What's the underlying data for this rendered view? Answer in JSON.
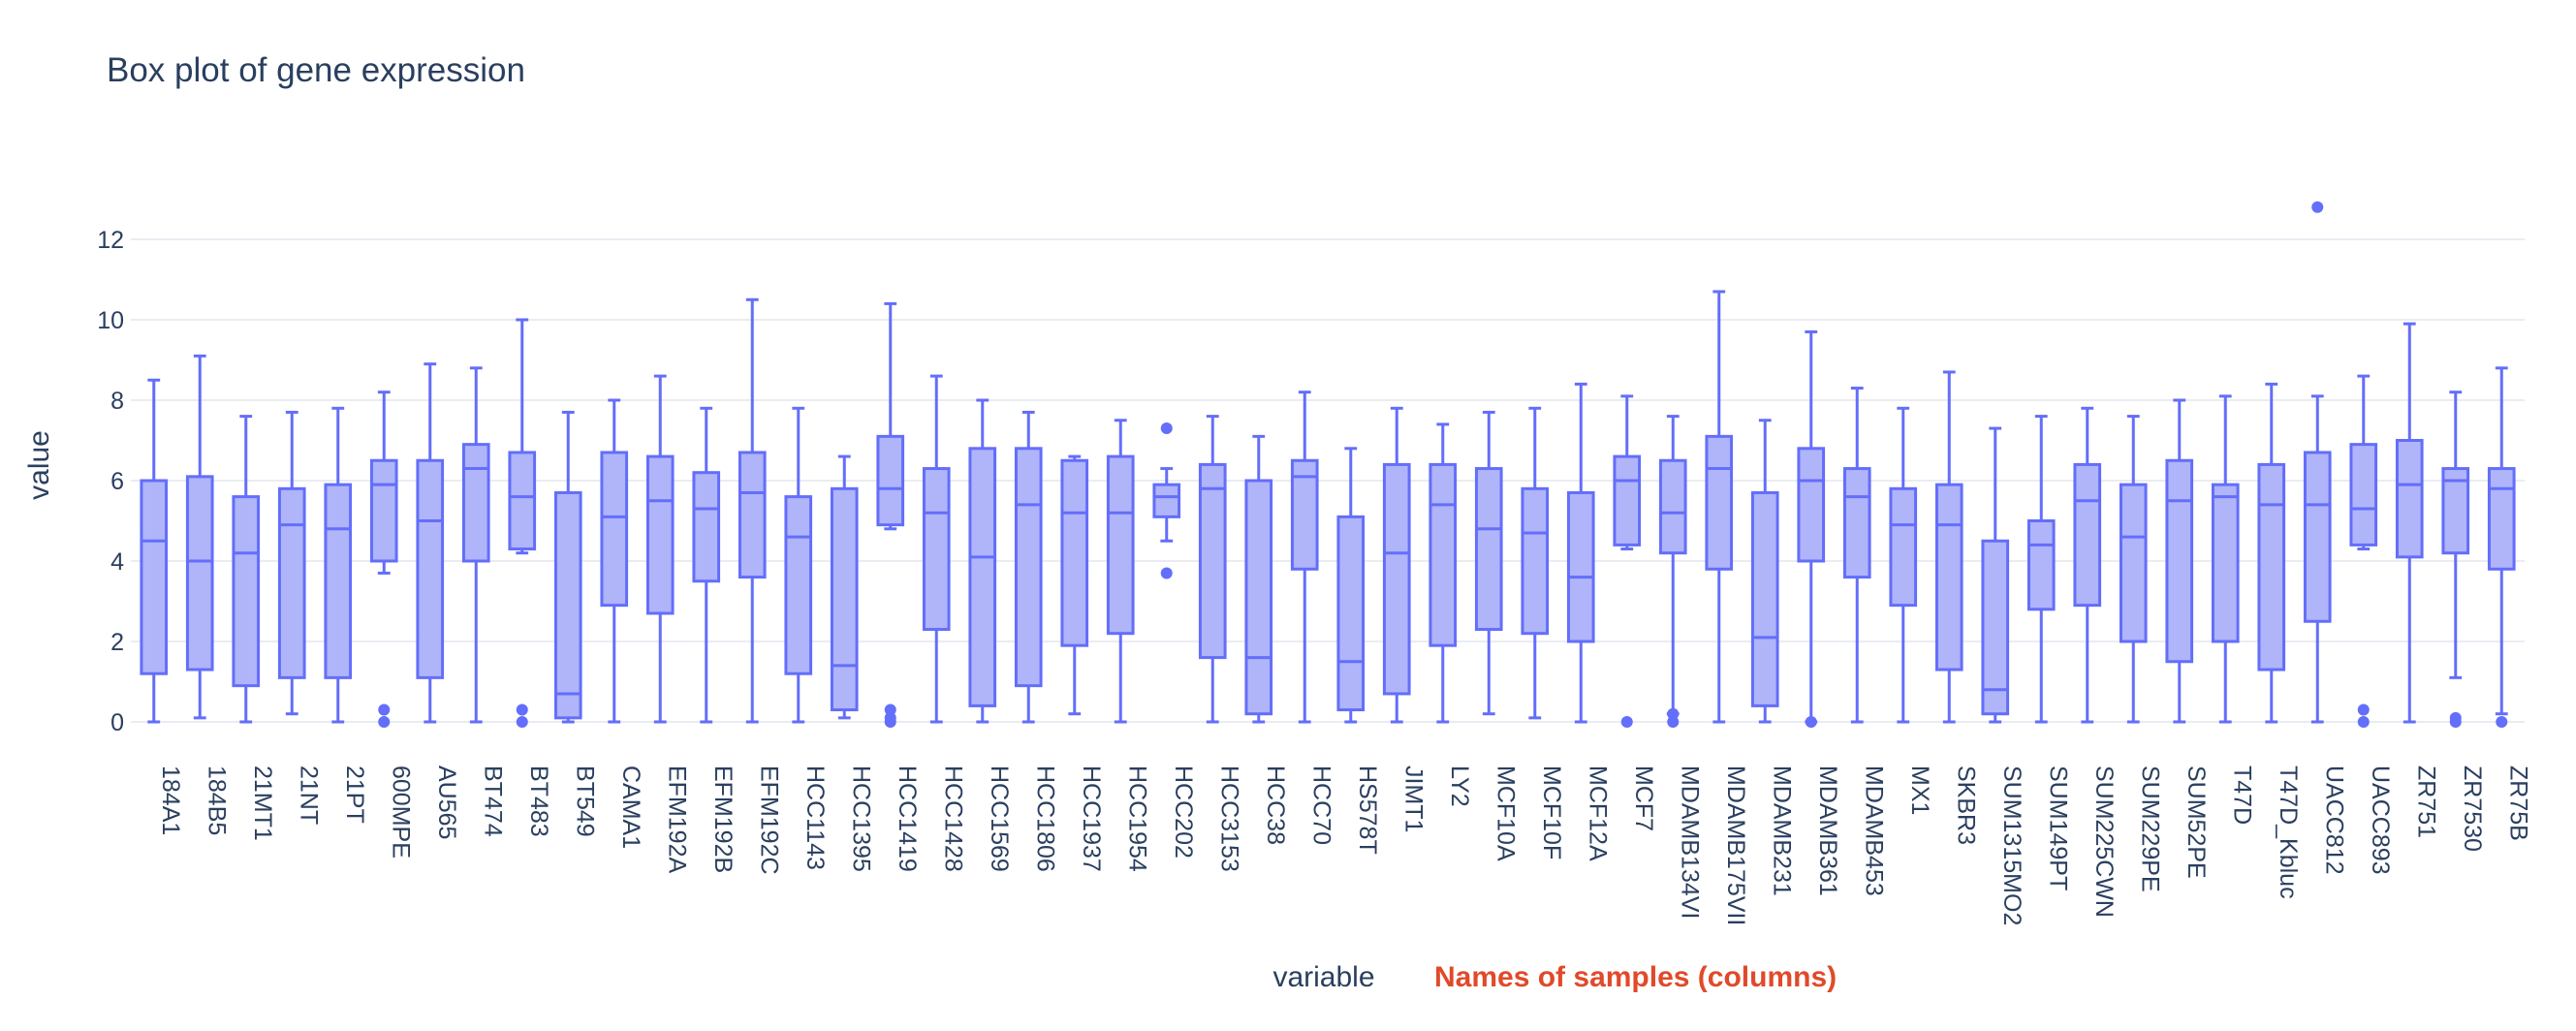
{
  "chart_data": {
    "type": "box",
    "title": "Box plot of gene expression",
    "xlabel": "variable",
    "ylabel": "value",
    "annotation": "Names of samples (columns)",
    "ylim": [
      -0.7,
      13.4
    ],
    "yticks": [
      0,
      2,
      4,
      6,
      8,
      10,
      12
    ],
    "grid": true,
    "colors": {
      "box_line": "#636efa",
      "box_fill": "#b0b4f9",
      "grid": "#eaecf2",
      "text": "#2a3f5f",
      "annotation": "#e04a2a"
    },
    "categories": [
      "184A1",
      "184B5",
      "21MT1",
      "21NT",
      "21PT",
      "600MPE",
      "AU565",
      "BT474",
      "BT483",
      "BT549",
      "CAMA1",
      "EFM192A",
      "EFM192B",
      "EFM192C",
      "HCC1143",
      "HCC1395",
      "HCC1419",
      "HCC1428",
      "HCC1569",
      "HCC1806",
      "HCC1937",
      "HCC1954",
      "HCC202",
      "HCC3153",
      "HCC38",
      "HCC70",
      "HS578T",
      "JIMT1",
      "LY2",
      "MCF10A",
      "MCF10F",
      "MCF12A",
      "MCF7",
      "MDAMB134VI",
      "MDAMB175VII",
      "MDAMB231",
      "MDAMB361",
      "MDAMB453",
      "MX1",
      "SKBR3",
      "SUM1315MO2",
      "SUM149PT",
      "SUM225CWN",
      "SUM229PE",
      "SUM52PE",
      "T47D",
      "T47D_Kbluc",
      "UACC812",
      "UACC893",
      "ZR751",
      "ZR7530",
      "ZR75B"
    ],
    "boxes": [
      {
        "low": 0,
        "q1": 1.2,
        "median": 4.5,
        "q3": 6.0,
        "high": 8.5,
        "outliers": []
      },
      {
        "low": 0.1,
        "q1": 1.3,
        "median": 4.0,
        "q3": 6.1,
        "high": 9.1,
        "outliers": []
      },
      {
        "low": 0,
        "q1": 0.9,
        "median": 4.2,
        "q3": 5.6,
        "high": 7.6,
        "outliers": []
      },
      {
        "low": 0.2,
        "q1": 1.1,
        "median": 4.9,
        "q3": 5.8,
        "high": 7.7,
        "outliers": []
      },
      {
        "low": 0,
        "q1": 1.1,
        "median": 4.8,
        "q3": 5.9,
        "high": 7.8,
        "outliers": []
      },
      {
        "low": 3.7,
        "q1": 4.0,
        "median": 5.9,
        "q3": 6.5,
        "high": 8.2,
        "outliers": [
          0.3,
          0.0
        ]
      },
      {
        "low": 0,
        "q1": 1.1,
        "median": 5.0,
        "q3": 6.5,
        "high": 8.9,
        "outliers": []
      },
      {
        "low": 0,
        "q1": 4.0,
        "median": 6.3,
        "q3": 6.9,
        "high": 8.8,
        "outliers": []
      },
      {
        "low": 4.2,
        "q1": 4.3,
        "median": 5.6,
        "q3": 6.7,
        "high": 10.0,
        "outliers": [
          0.3,
          0.0
        ]
      },
      {
        "low": 0,
        "q1": 0.1,
        "median": 0.7,
        "q3": 5.7,
        "high": 7.7,
        "outliers": []
      },
      {
        "low": 0,
        "q1": 2.9,
        "median": 5.1,
        "q3": 6.7,
        "high": 8.0,
        "outliers": []
      },
      {
        "low": 0,
        "q1": 2.7,
        "median": 5.5,
        "q3": 6.6,
        "high": 8.6,
        "outliers": []
      },
      {
        "low": 0,
        "q1": 3.5,
        "median": 5.3,
        "q3": 6.2,
        "high": 7.8,
        "outliers": []
      },
      {
        "low": 0,
        "q1": 3.6,
        "median": 5.7,
        "q3": 6.7,
        "high": 10.5,
        "outliers": []
      },
      {
        "low": 0,
        "q1": 1.2,
        "median": 4.6,
        "q3": 5.6,
        "high": 7.8,
        "outliers": []
      },
      {
        "low": 0.1,
        "q1": 0.3,
        "median": 1.4,
        "q3": 5.8,
        "high": 6.6,
        "outliers": []
      },
      {
        "low": 4.8,
        "q1": 4.9,
        "median": 5.8,
        "q3": 7.1,
        "high": 10.4,
        "outliers": [
          0.3,
          0.1,
          0.0
        ]
      },
      {
        "low": 0,
        "q1": 2.3,
        "median": 5.2,
        "q3": 6.3,
        "high": 8.6,
        "outliers": []
      },
      {
        "low": 0,
        "q1": 0.4,
        "median": 4.1,
        "q3": 6.8,
        "high": 8.0,
        "outliers": []
      },
      {
        "low": 0,
        "q1": 0.9,
        "median": 5.4,
        "q3": 6.8,
        "high": 7.7,
        "outliers": []
      },
      {
        "low": 0.2,
        "q1": 1.9,
        "median": 5.2,
        "q3": 6.5,
        "high": 6.6,
        "outliers": []
      },
      {
        "low": 0,
        "q1": 2.2,
        "median": 5.2,
        "q3": 6.6,
        "high": 7.5,
        "outliers": []
      },
      {
        "low": 4.5,
        "q1": 5.1,
        "median": 5.6,
        "q3": 5.9,
        "high": 6.3,
        "outliers": [
          7.3,
          3.7
        ]
      },
      {
        "low": 0,
        "q1": 1.6,
        "median": 5.8,
        "q3": 6.4,
        "high": 7.6,
        "outliers": []
      },
      {
        "low": 0,
        "q1": 0.2,
        "median": 1.6,
        "q3": 6.0,
        "high": 7.1,
        "outliers": []
      },
      {
        "low": 0,
        "q1": 3.8,
        "median": 6.1,
        "q3": 6.5,
        "high": 8.2,
        "outliers": []
      },
      {
        "low": 0,
        "q1": 0.3,
        "median": 1.5,
        "q3": 5.1,
        "high": 6.8,
        "outliers": []
      },
      {
        "low": 0,
        "q1": 0.7,
        "median": 4.2,
        "q3": 6.4,
        "high": 7.8,
        "outliers": []
      },
      {
        "low": 0,
        "q1": 1.9,
        "median": 5.4,
        "q3": 6.4,
        "high": 7.4,
        "outliers": []
      },
      {
        "low": 0.2,
        "q1": 2.3,
        "median": 4.8,
        "q3": 6.3,
        "high": 7.7,
        "outliers": []
      },
      {
        "low": 0.1,
        "q1": 2.2,
        "median": 4.7,
        "q3": 5.8,
        "high": 7.8,
        "outliers": []
      },
      {
        "low": 0,
        "q1": 2.0,
        "median": 3.6,
        "q3": 5.7,
        "high": 8.4,
        "outliers": []
      },
      {
        "low": 4.3,
        "q1": 4.4,
        "median": 6.0,
        "q3": 6.6,
        "high": 8.1,
        "outliers": [
          0.0
        ]
      },
      {
        "low": 0.2,
        "q1": 4.2,
        "median": 5.2,
        "q3": 6.5,
        "high": 7.6,
        "outliers": [
          0.2,
          0.0
        ]
      },
      {
        "low": 0,
        "q1": 3.8,
        "median": 6.3,
        "q3": 7.1,
        "high": 10.7,
        "outliers": []
      },
      {
        "low": 0,
        "q1": 0.4,
        "median": 2.1,
        "q3": 5.7,
        "high": 7.5,
        "outliers": []
      },
      {
        "low": 0,
        "q1": 4.0,
        "median": 6.0,
        "q3": 6.8,
        "high": 9.7,
        "outliers": [
          0.0
        ]
      },
      {
        "low": 0,
        "q1": 3.6,
        "median": 5.6,
        "q3": 6.3,
        "high": 8.3,
        "outliers": []
      },
      {
        "low": 0,
        "q1": 2.9,
        "median": 4.9,
        "q3": 5.8,
        "high": 7.8,
        "outliers": []
      },
      {
        "low": 0,
        "q1": 1.3,
        "median": 4.9,
        "q3": 5.9,
        "high": 8.7,
        "outliers": []
      },
      {
        "low": 0,
        "q1": 0.2,
        "median": 0.8,
        "q3": 4.5,
        "high": 7.3,
        "outliers": []
      },
      {
        "low": 0,
        "q1": 2.8,
        "median": 4.4,
        "q3": 5.0,
        "high": 7.6,
        "outliers": []
      },
      {
        "low": 0,
        "q1": 2.9,
        "median": 5.5,
        "q3": 6.4,
        "high": 7.8,
        "outliers": []
      },
      {
        "low": 0,
        "q1": 2.0,
        "median": 4.6,
        "q3": 5.9,
        "high": 7.6,
        "outliers": []
      },
      {
        "low": 0,
        "q1": 1.5,
        "median": 5.5,
        "q3": 6.5,
        "high": 8.0,
        "outliers": []
      },
      {
        "low": 0,
        "q1": 2.0,
        "median": 5.6,
        "q3": 5.9,
        "high": 8.1,
        "outliers": []
      },
      {
        "low": 0,
        "q1": 1.3,
        "median": 5.4,
        "q3": 6.4,
        "high": 8.4,
        "outliers": []
      },
      {
        "low": 0,
        "q1": 2.5,
        "median": 5.4,
        "q3": 6.7,
        "high": 8.1,
        "outliers": [
          12.8
        ]
      },
      {
        "low": 4.3,
        "q1": 4.4,
        "median": 5.3,
        "q3": 6.9,
        "high": 8.6,
        "outliers": [
          0.3,
          0.0
        ]
      },
      {
        "low": 0,
        "q1": 4.1,
        "median": 5.9,
        "q3": 7.0,
        "high": 9.9,
        "outliers": []
      },
      {
        "low": 1.1,
        "q1": 4.2,
        "median": 6.0,
        "q3": 6.3,
        "high": 8.2,
        "outliers": [
          0.1,
          0.0
        ]
      },
      {
        "low": 0.2,
        "q1": 3.8,
        "median": 5.8,
        "q3": 6.3,
        "high": 8.8,
        "outliers": [
          0.0
        ]
      }
    ]
  }
}
